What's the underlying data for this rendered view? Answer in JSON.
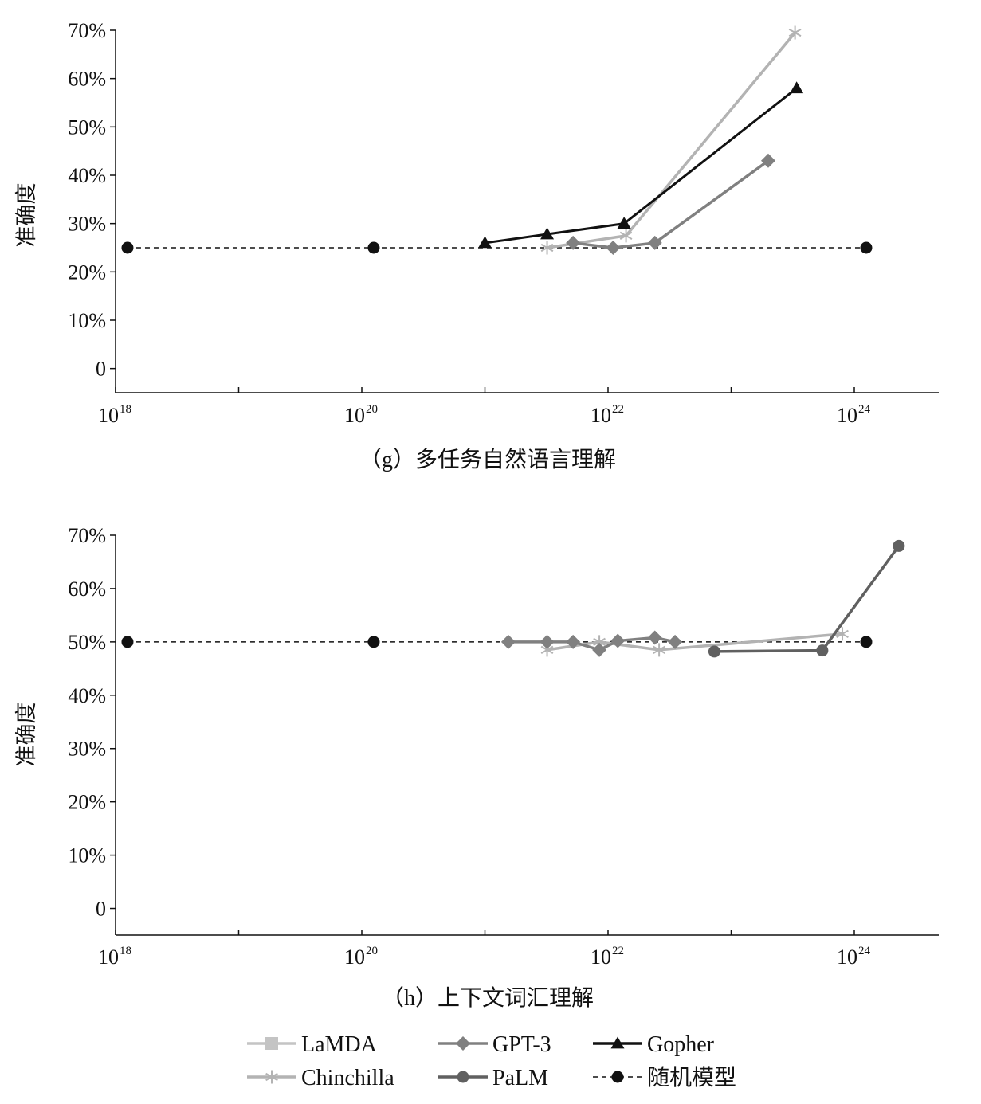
{
  "chart_data": [
    {
      "type": "line",
      "title": "",
      "caption": "（g）多任务自然语言理解",
      "xlabel": "",
      "ylabel": "准确度",
      "xscale": "log",
      "xlim": [
        1e+18,
        1e+25
      ],
      "ylim": [
        -5,
        70
      ],
      "ytick_labels": [
        "0",
        "10%",
        "20%",
        "30%",
        "40%",
        "50%",
        "60%",
        "70%"
      ],
      "ytick_values": [
        0,
        10,
        20,
        30,
        40,
        50,
        60,
        70
      ],
      "xtick_base": "10",
      "xtick_exponents": [
        "18",
        "20",
        "22",
        "24"
      ],
      "xtick_values": [
        1e+18,
        1e+20,
        1e+22,
        1e+24
      ],
      "grid": false,
      "series": [
        {
          "name": "Chinchilla",
          "marker": "star",
          "color": "#b3b3b3",
          "dashed": false,
          "x": [
            3.2e+21,
            1.4e+22,
            3.3e+23
          ],
          "y": [
            25,
            27.5,
            69.5
          ]
        },
        {
          "name": "GPT-3",
          "marker": "diamond",
          "color": "#808080",
          "dashed": false,
          "x": [
            5.2e+21,
            1.1e+22,
            2.4e+22,
            2e+23
          ],
          "y": [
            26,
            25,
            26,
            43
          ]
        },
        {
          "name": "Gopher",
          "marker": "triangle",
          "color": "#111111",
          "dashed": false,
          "x": [
            1e+21,
            3.2e+21,
            1.35e+22,
            3.4e+23
          ],
          "y": [
            26,
            27.8,
            30,
            58
          ]
        },
        {
          "name": "随机模型",
          "marker": "circle",
          "color": "#111111",
          "dashed": true,
          "x": [
            1.25e+18,
            1.25e+20,
            1.25e+24
          ],
          "y": [
            25,
            25,
            25
          ]
        }
      ]
    },
    {
      "type": "line",
      "title": "",
      "caption": "（h）上下文词汇理解",
      "xlabel": "",
      "ylabel": "准确度",
      "xscale": "log",
      "xlim": [
        1e+18,
        1e+25
      ],
      "ylim": [
        -5,
        70
      ],
      "ytick_labels": [
        "0",
        "10%",
        "20%",
        "30%",
        "40%",
        "50%",
        "60%",
        "70%"
      ],
      "ytick_values": [
        0,
        10,
        20,
        30,
        40,
        50,
        60,
        70
      ],
      "xtick_base": "10",
      "xtick_exponents": [
        "18",
        "20",
        "22",
        "24"
      ],
      "xtick_values": [
        1e+18,
        1e+20,
        1e+22,
        1e+24
      ],
      "grid": false,
      "series": [
        {
          "name": "Chinchilla",
          "marker": "star",
          "color": "#b3b3b3",
          "dashed": false,
          "x": [
            3.2e+21,
            8.5e+21,
            2.6e+22,
            8e+23
          ],
          "y": [
            48.5,
            50,
            48.5,
            51.5
          ]
        },
        {
          "name": "GPT-3",
          "marker": "diamond",
          "color": "#808080",
          "dashed": false,
          "x": [
            1.55e+21,
            3.2e+21,
            5.2e+21,
            8.5e+21,
            1.2e+22,
            2.4e+22,
            3.5e+22
          ],
          "y": [
            50,
            50,
            50,
            48.5,
            50.2,
            50.8,
            50
          ]
        },
        {
          "name": "PaLM",
          "marker": "circle",
          "color": "#606060",
          "dashed": false,
          "x": [
            7.3e+22,
            5.5e+23,
            2.3e+24
          ],
          "y": [
            48.2,
            48.4,
            68
          ]
        },
        {
          "name": "随机模型",
          "marker": "circle",
          "color": "#111111",
          "dashed": true,
          "x": [
            1.25e+18,
            1.25e+20,
            1.25e+24
          ],
          "y": [
            50,
            50,
            50
          ]
        }
      ]
    }
  ],
  "legend": {
    "placement": "bottom",
    "entries": [
      {
        "label": "LaMDA",
        "marker": "square",
        "color": "#c4c4c4",
        "dashed": false
      },
      {
        "label": "GPT-3",
        "marker": "diamond",
        "color": "#808080",
        "dashed": false
      },
      {
        "label": "Gopher",
        "marker": "triangle",
        "color": "#111111",
        "dashed": false
      },
      {
        "label": "Chinchilla",
        "marker": "star",
        "color": "#b3b3b3",
        "dashed": false
      },
      {
        "label": "PaLM",
        "marker": "circle",
        "color": "#606060",
        "dashed": false
      },
      {
        "label": "随机模型",
        "marker": "circle",
        "color": "#111111",
        "dashed": true
      }
    ]
  }
}
